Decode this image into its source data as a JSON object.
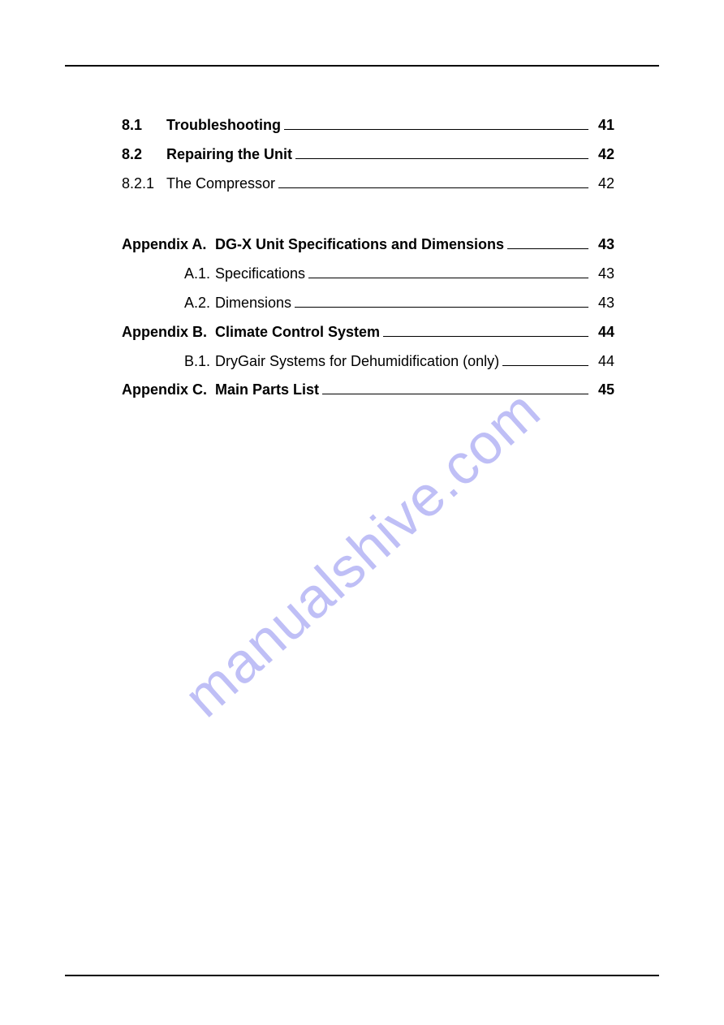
{
  "watermark": {
    "text": "manualshive.com",
    "color": "#8b8bf0"
  },
  "toc_section1": [
    {
      "num": "8.1",
      "title": "Troubleshooting",
      "page": "41",
      "bold": true
    },
    {
      "num": "8.2",
      "title": "Repairing the Unit",
      "page": "42",
      "bold": true
    },
    {
      "num": "8.2.1",
      "title": "The Compressor",
      "page": "42",
      "bold": false
    }
  ],
  "toc_section2": [
    {
      "style": "appendix",
      "num": "Appendix A.",
      "title": "DG-X Unit Specifications and Dimensions",
      "page": "43",
      "bold": true
    },
    {
      "style": "sub",
      "num": "A.1.",
      "title": "Specifications",
      "page": "43",
      "bold": false
    },
    {
      "style": "sub",
      "num": "A.2.",
      "title": "Dimensions",
      "page": "43",
      "bold": false
    },
    {
      "style": "appendix",
      "num": "Appendix B.",
      "title": "Climate Control System",
      "page": "44",
      "bold": true
    },
    {
      "style": "sub",
      "num": "B.1.",
      "title": "DryGair Systems for Dehumidification (only)",
      "page": "44",
      "bold": false
    },
    {
      "style": "appendix",
      "num": "Appendix C.",
      "title": "Main Parts List",
      "page": "45",
      "bold": true
    }
  ]
}
